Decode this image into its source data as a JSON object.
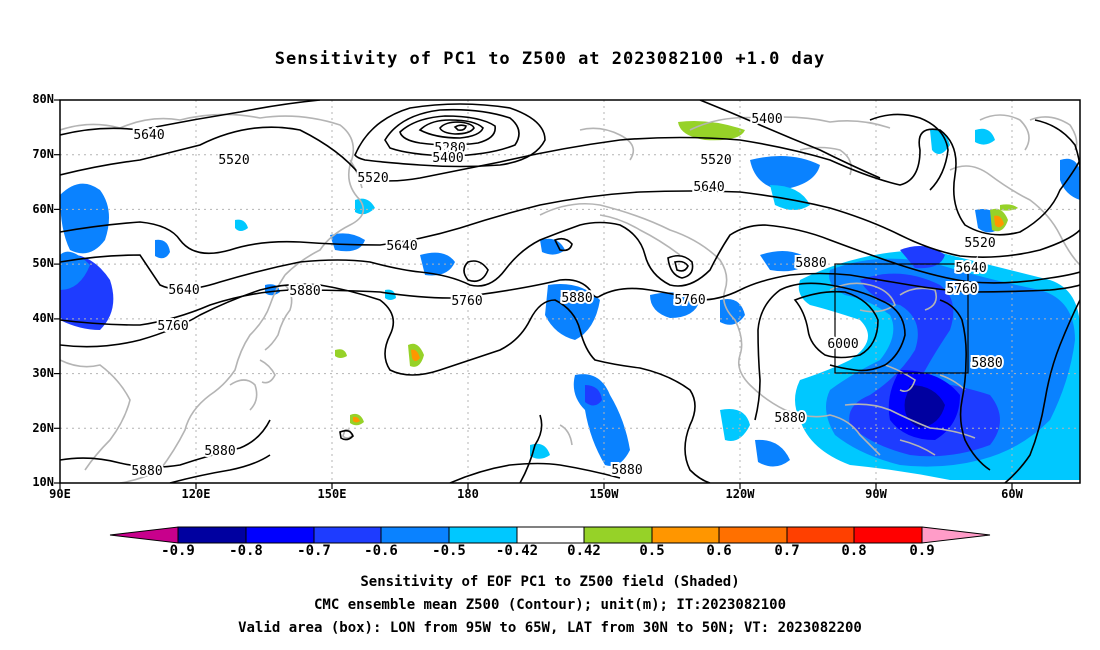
{
  "title": "Sensitivity of PC1 to Z500 at 2023082100 +1.0 day",
  "map": {
    "lat_labels": [
      "80N",
      "70N",
      "60N",
      "50N",
      "40N",
      "30N",
      "20N",
      "10N"
    ],
    "lon_labels": [
      "90E",
      "120E",
      "150E",
      "180",
      "150W",
      "120W",
      "90W",
      "60W"
    ],
    "contour_labels": [
      "5640",
      "5520",
      "5520",
      "5280",
      "5400",
      "5400",
      "5520",
      "5640",
      "5640",
      "5640",
      "5760",
      "5880",
      "5760",
      "5880",
      "5760",
      "5880",
      "6000",
      "5520",
      "5640",
      "5760",
      "5880",
      "5880",
      "5880",
      "5880",
      "5880"
    ],
    "valid_box": {
      "lon_range": [
        "95W",
        "65W"
      ],
      "lat_range": [
        "30N",
        "50N"
      ]
    },
    "colors": {
      "contour": "#000000",
      "coastline": "#b4b4b4",
      "box": "#000000"
    }
  },
  "colorbar": {
    "labels": [
      "-0.9",
      "-0.8",
      "-0.7",
      "-0.6",
      "-0.5",
      "-0.42",
      "0.42",
      "0.5",
      "0.6",
      "0.7",
      "0.8",
      "0.9"
    ],
    "colors": [
      "#c8008c",
      "#0000a0",
      "#0000ff",
      "#1e3cff",
      "#0a82ff",
      "#00c8ff",
      "#ffffff",
      "#96d228",
      "#ff9600",
      "#ff7000",
      "#ff4000",
      "#ff0000",
      "#ff9cc8"
    ]
  },
  "captions": [
    "Sensitivity of EOF PC1 to Z500 field (Shaded)",
    "CMC ensemble mean Z500 (Contour); unit(m); IT:2023082100",
    "Valid area (box): LON from 95W to 65W, LAT from 30N to 50N; VT: 2023082200"
  ]
}
